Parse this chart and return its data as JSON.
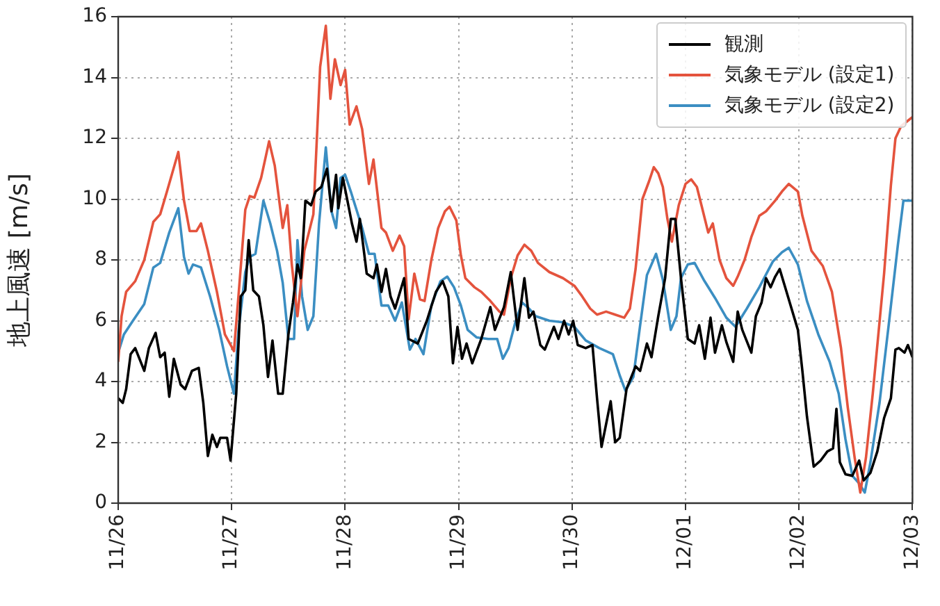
{
  "chart_data": {
    "type": "line",
    "ylabel": "地上風速 [m/s]",
    "xlim": [
      "--11-26",
      "--12-03"
    ],
    "xticks": [
      {
        "value": "--11-26",
        "label": "11/26"
      },
      {
        "value": "--11-27",
        "label": "11/27"
      },
      {
        "value": "--11-28",
        "label": "11/28"
      },
      {
        "value": "--11-29",
        "label": "11/29"
      },
      {
        "value": "--11-30",
        "label": "11/30"
      },
      {
        "value": "--12-01",
        "label": "12/01"
      },
      {
        "value": "--12-02",
        "label": "12/02"
      },
      {
        "value": "--12-03",
        "label": "12/03"
      }
    ],
    "ylim": [
      0,
      16
    ],
    "yticks": [
      0,
      2,
      4,
      6,
      8,
      10,
      12,
      14,
      16
    ],
    "grid": true,
    "legend": "top right",
    "marker": "none",
    "line_style": "solid",
    "series": [
      {
        "name": "観測",
        "color": "#000000",
        "x": [
          "--11-26T00:00",
          "--11-26T00:58",
          "--11-26T01:41",
          "--11-26T02:38",
          "--11-26T03:36",
          "--11-26T05:31",
          "--11-26T06:29",
          "--11-26T07:55",
          "--11-26T08:53",
          "--11-26T09:50",
          "--11-26T10:48",
          "--11-26T11:46",
          "--11-26T13:12",
          "--11-26T14:10",
          "--11-26T15:36",
          "--11-26T17:02",
          "--11-26T18:00",
          "--11-26T18:58",
          "--11-26T19:55",
          "--11-26T20:53",
          "--11-26T21:36",
          "--11-26T23:02",
          "--11-26T23:46",
          "--11-27T00:58",
          "--11-27T01:55",
          "--11-27T02:53",
          "--11-27T03:36",
          "--11-27T04:34",
          "--11-27T05:46",
          "--11-27T06:43",
          "--11-27T07:41",
          "--11-27T08:38",
          "--11-27T09:50",
          "--11-27T10:48",
          "--11-27T12:00",
          "--11-27T12:58",
          "--11-27T13:55",
          "--11-27T14:38",
          "--11-27T15:36",
          "--11-27T16:48",
          "--11-27T17:46",
          "--11-27T18:58",
          "--11-27T20:10",
          "--11-27T21:07",
          "--11-27T22:05",
          "--11-27T22:34",
          "--11-27T23:31",
          "--11-28T00:29",
          "--11-28T01:26",
          "--11-28T02:24",
          "--11-28T03:07",
          "--11-28T04:34",
          "--11-28T06:00",
          "--11-28T06:43",
          "--11-28T07:41",
          "--11-28T08:38",
          "--11-28T09:36",
          "--11-28T10:34",
          "--11-28T12:29",
          "--11-28T13:26",
          "--11-28T15:22",
          "--11-28T17:17",
          "--11-28T19:12",
          "--11-28T20:38",
          "--11-28T21:50",
          "--11-28T22:48",
          "--11-28T23:46",
          "--11-29T00:43",
          "--11-29T01:41",
          "--11-29T02:53",
          "--11-29T04:48",
          "--11-29T06:43",
          "--11-29T07:41",
          "--11-29T09:36",
          "--11-29T11:02",
          "--11-29T12:29",
          "--11-29T13:55",
          "--11-29T14:53",
          "--11-29T15:50",
          "--11-29T17:17",
          "--11-29T18:14",
          "--11-29T20:10",
          "--11-29T21:07",
          "--11-29T22:19",
          "--11-29T23:17",
          "--11-30T00:14",
          "--11-30T01:12",
          "--11-30T02:53",
          "--11-30T04:19",
          "--11-30T05:17",
          "--11-30T06:14",
          "--11-30T08:10",
          "--11-30T09:07",
          "--11-30T10:05",
          "--11-30T11:31",
          "--11-30T13:26",
          "--11-30T14:24",
          "--11-30T15:50",
          "--11-30T16:48",
          "--11-30T18:14",
          "--11-30T19:41",
          "--11-30T20:53",
          "--11-30T21:50",
          "--11-30T23:02",
          "--12-01T00:29",
          "--12-01T01:55",
          "--12-01T02:53",
          "--12-01T04:05",
          "--12-01T05:17",
          "--12-01T06:14",
          "--12-01T07:41",
          "--12-01T08:38",
          "--12-01T10:05",
          "--12-01T11:02",
          "--12-01T12:00",
          "--12-01T13:55",
          "--12-01T14:53",
          "--12-01T16:05",
          "--12-01T17:02",
          "--12-01T18:00",
          "--12-01T18:58",
          "--12-01T19:55",
          "--12-01T21:22",
          "--12-01T23:46",
          "--12-02T00:43",
          "--12-02T01:41",
          "--12-02T03:07",
          "--12-02T04:34",
          "--12-02T06:00",
          "--12-02T07:12",
          "--12-02T07:55",
          "--12-02T08:38",
          "--12-02T09:50",
          "--12-02T11:17",
          "--12-02T12:43",
          "--12-02T13:41",
          "--12-02T15:07",
          "--12-02T16:34",
          "--12-02T18:00",
          "--12-02T19:26",
          "--12-02T20:24",
          "--12-02T21:07",
          "--12-02T22:19",
          "--12-02T23:02",
          "--12-03T00:00"
        ],
        "values": [
          3.45,
          3.3,
          3.75,
          4.9,
          5.1,
          4.35,
          5.1,
          5.6,
          4.8,
          4.95,
          3.5,
          4.75,
          3.9,
          3.75,
          4.35,
          4.45,
          3.3,
          1.55,
          2.25,
          1.85,
          2.15,
          2.15,
          1.4,
          3.6,
          6.8,
          7.0,
          8.65,
          7.0,
          6.8,
          5.85,
          4.15,
          5.35,
          3.6,
          3.6,
          5.55,
          6.6,
          7.85,
          7.4,
          9.95,
          9.8,
          10.25,
          10.4,
          11.0,
          9.6,
          10.8,
          9.7,
          10.7,
          9.95,
          9.2,
          8.6,
          9.35,
          7.55,
          7.4,
          7.85,
          6.95,
          7.7,
          6.8,
          6.4,
          7.4,
          5.4,
          5.25,
          6.0,
          6.95,
          7.3,
          6.8,
          4.6,
          5.8,
          4.75,
          5.25,
          4.6,
          5.4,
          6.45,
          5.7,
          6.45,
          7.6,
          5.7,
          7.4,
          6.1,
          6.3,
          5.2,
          5.05,
          5.8,
          5.4,
          6.0,
          5.55,
          6.0,
          5.2,
          5.1,
          5.2,
          3.45,
          1.85,
          3.35,
          2.0,
          2.15,
          3.75,
          4.5,
          4.35,
          5.25,
          4.8,
          6.15,
          7.4,
          9.35,
          9.35,
          7.4,
          5.4,
          5.25,
          5.85,
          4.75,
          6.1,
          4.95,
          5.85,
          5.3,
          4.65,
          6.3,
          5.7,
          4.95,
          6.15,
          6.6,
          7.4,
          7.1,
          7.45,
          7.7,
          6.95,
          5.7,
          4.35,
          2.85,
          1.2,
          1.4,
          1.7,
          1.8,
          3.1,
          1.35,
          0.95,
          0.9,
          1.4,
          0.75,
          1.0,
          1.7,
          2.8,
          3.45,
          5.05,
          5.1,
          4.95,
          5.2,
          4.8
        ]
      },
      {
        "name": "気象モデル (設定1)",
        "color": "#e4533d",
        "x": [
          "--11-26T00:00",
          "--11-26T00:43",
          "--11-26T01:41",
          "--11-26T03:36",
          "--11-26T05:31",
          "--11-26T07:26",
          "--11-26T08:53",
          "--11-26T10:19",
          "--11-26T12:43",
          "--11-26T13:55",
          "--11-26T15:07",
          "--11-26T16:34",
          "--11-26T17:31",
          "--11-26T18:58",
          "--11-26T20:53",
          "--11-26T22:34",
          "--11-27T00:29",
          "--11-27T01:26",
          "--11-27T02:53",
          "--11-27T03:50",
          "--11-27T04:48",
          "--11-27T06:14",
          "--11-27T07:55",
          "--11-27T09:07",
          "--11-27T10:48",
          "--11-27T11:46",
          "--11-27T12:43",
          "--11-27T13:55",
          "--11-27T15:22",
          "--11-27T17:17",
          "--11-27T18:43",
          "--11-27T19:55",
          "--11-27T20:53",
          "--11-27T21:50",
          "--11-27T23:02",
          "--11-28T00:00",
          "--11-28T00:58",
          "--11-28T02:24",
          "--11-28T03:36",
          "--11-28T05:02",
          "--11-28T06:00",
          "--11-28T07:41",
          "--11-28T08:38",
          "--11-28T10:05",
          "--11-28T11:31",
          "--11-28T12:29",
          "--11-28T13:26",
          "--11-28T14:38",
          "--11-28T15:50",
          "--11-28T16:48",
          "--11-28T18:14",
          "--11-28T19:41",
          "--11-28T21:07",
          "--11-28T22:05",
          "--11-28T23:31",
          "--11-29T00:29",
          "--11-29T01:26",
          "--11-29T03:22",
          "--11-29T04:48",
          "--11-29T06:43",
          "--11-29T08:38",
          "--11-29T09:36",
          "--11-29T11:02",
          "--11-29T12:29",
          "--11-29T13:55",
          "--11-29T15:22",
          "--11-29T16:48",
          "--11-29T19:12",
          "--11-29T22:05",
          "--11-30T00:29",
          "--11-30T01:55",
          "--11-30T03:50",
          "--11-30T05:17",
          "--11-30T07:12",
          "--11-30T09:07",
          "--11-30T11:02",
          "--11-30T12:14",
          "--11-30T13:26",
          "--11-30T14:53",
          "--11-30T16:19",
          "--11-30T17:17",
          "--11-30T18:14",
          "--11-30T19:12",
          "--11-30T20:10",
          "--11-30T21:07",
          "--11-30T22:34",
          "--12-01T00:00",
          "--12-01T01:12",
          "--12-01T02:24",
          "--12-01T03:22",
          "--12-01T04:48",
          "--12-01T05:46",
          "--12-01T07:12",
          "--12-01T08:38",
          "--12-01T10:05",
          "--12-01T11:02",
          "--12-01T12:29",
          "--12-01T13:55",
          "--12-01T15:36",
          "--12-01T17:02",
          "--12-01T18:58",
          "--12-01T20:24",
          "--12-01T21:50",
          "--12-01T23:46",
          "--12-02T00:43",
          "--12-02T02:38",
          "--12-02T05:02",
          "--12-02T06:58",
          "--12-02T08:53",
          "--12-02T10:19",
          "--12-02T11:46",
          "--12-02T12:58",
          "--12-02T14:10",
          "--12-02T15:36",
          "--12-02T18:00",
          "--12-02T19:26",
          "--12-02T20:24",
          "--12-02T21:36",
          "--12-03T00:00"
        ],
        "values": [
          4.65,
          6.15,
          6.95,
          7.3,
          8.0,
          9.25,
          9.5,
          10.25,
          11.55,
          9.95,
          8.95,
          8.95,
          9.2,
          8.3,
          6.95,
          5.55,
          5.0,
          6.8,
          9.65,
          10.1,
          10.05,
          10.7,
          11.9,
          11.1,
          9.05,
          9.8,
          7.85,
          6.15,
          8.3,
          9.5,
          14.35,
          15.7,
          13.3,
          14.6,
          13.75,
          14.25,
          12.45,
          13.05,
          12.3,
          10.5,
          11.3,
          9.05,
          8.9,
          8.3,
          8.8,
          8.45,
          6.05,
          7.55,
          6.7,
          6.65,
          8.0,
          9.05,
          9.6,
          9.75,
          9.3,
          8.15,
          7.4,
          7.1,
          6.95,
          6.65,
          6.3,
          6.2,
          7.4,
          8.15,
          8.5,
          8.3,
          7.9,
          7.6,
          7.4,
          7.15,
          6.85,
          6.4,
          6.2,
          6.3,
          6.2,
          6.1,
          6.4,
          7.7,
          10.0,
          10.6,
          11.05,
          10.85,
          10.4,
          9.35,
          8.6,
          9.8,
          10.5,
          10.65,
          10.4,
          9.8,
          8.9,
          9.2,
          8.0,
          7.4,
          7.15,
          7.45,
          8.0,
          8.75,
          9.45,
          9.6,
          9.95,
          10.25,
          10.5,
          10.25,
          9.45,
          8.3,
          7.8,
          6.95,
          5.1,
          3.15,
          1.5,
          0.35,
          1.5,
          3.6,
          7.55,
          10.45,
          12.0,
          12.4,
          12.7
        ]
      },
      {
        "name": "気象モデル (設定2)",
        "color": "#3b8ec2",
        "x": [
          "--11-26T00:00",
          "--11-26T01:12",
          "--11-26T03:07",
          "--11-26T05:31",
          "--11-26T07:26",
          "--11-26T08:53",
          "--11-26T10:48",
          "--11-26T12:43",
          "--11-26T13:55",
          "--11-26T14:53",
          "--11-26T15:50",
          "--11-26T17:31",
          "--11-26T19:26",
          "--11-26T21:22",
          "--11-26T23:02",
          "--11-27T00:29",
          "--11-27T01:26",
          "--11-27T02:53",
          "--11-27T03:50",
          "--11-27T05:02",
          "--11-27T06:43",
          "--11-27T08:10",
          "--11-27T09:36",
          "--11-27T10:48",
          "--11-27T12:00",
          "--11-27T13:12",
          "--11-27T13:55",
          "--11-27T14:53",
          "--11-27T16:05",
          "--11-27T17:17",
          "--11-27T18:29",
          "--11-27T19:55",
          "--11-27T21:07",
          "--11-27T22:05",
          "--11-27T23:02",
          "--11-28T00:00",
          "--11-28T01:12",
          "--11-28T02:24",
          "--11-28T03:36",
          "--11-28T05:02",
          "--11-28T06:14",
          "--11-28T07:41",
          "--11-28T09:07",
          "--11-28T10:34",
          "--11-28T12:00",
          "--11-28T13:41",
          "--11-28T14:53",
          "--11-28T16:34",
          "--11-28T18:14",
          "--11-28T20:10",
          "--11-28T21:36",
          "--11-28T23:02",
          "--11-29T00:29",
          "--11-29T01:55",
          "--11-29T03:50",
          "--11-29T06:14",
          "--11-29T08:10",
          "--11-29T09:22",
          "--11-29T10:34",
          "--11-29T12:00",
          "--11-29T13:26",
          "--11-29T14:53",
          "--11-29T16:19",
          "--11-29T19:12",
          "--11-29T22:05",
          "--11-30T00:29",
          "--11-30T02:53",
          "--11-30T05:46",
          "--11-30T08:38",
          "--11-30T10:05",
          "--11-30T11:17",
          "--11-30T12:58",
          "--11-30T14:24",
          "--11-30T15:50",
          "--11-30T17:46",
          "--11-30T19:12",
          "--11-30T20:53",
          "--11-30T22:05",
          "--11-30T23:02",
          "--12-01T00:29",
          "--12-01T01:55",
          "--12-01T03:50",
          "--12-01T06:14",
          "--12-01T08:38",
          "--12-01T10:34",
          "--12-01T12:58",
          "--12-01T15:36",
          "--12-01T18:29",
          "--12-01T20:24",
          "--12-01T21:50",
          "--12-01T23:46",
          "--12-02T01:41",
          "--12-02T04:05",
          "--12-02T06:29",
          "--12-02T08:24",
          "--12-02T09:50",
          "--12-02T11:17",
          "--12-02T12:43",
          "--12-02T13:55",
          "--12-02T15:07",
          "--12-02T17:02",
          "--12-02T18:58",
          "--12-02T20:53",
          "--12-02T22:05",
          "--12-03T00:00"
        ],
        "values": [
          4.95,
          5.55,
          6.0,
          6.55,
          7.75,
          7.9,
          8.9,
          9.7,
          8.1,
          7.55,
          7.85,
          7.75,
          6.8,
          5.7,
          4.5,
          3.6,
          5.65,
          7.6,
          8.1,
          8.2,
          9.95,
          9.2,
          8.3,
          7.25,
          5.4,
          5.4,
          8.65,
          6.8,
          5.7,
          6.15,
          9.2,
          11.7,
          9.6,
          9.05,
          10.7,
          10.8,
          10.25,
          9.65,
          9.05,
          8.2,
          8.2,
          6.5,
          6.5,
          6.0,
          6.6,
          5.05,
          5.4,
          4.9,
          6.5,
          7.3,
          7.45,
          7.1,
          6.5,
          5.7,
          5.45,
          5.4,
          5.4,
          4.75,
          5.1,
          5.95,
          6.6,
          6.4,
          6.15,
          6.0,
          5.95,
          5.8,
          5.35,
          5.1,
          4.9,
          4.2,
          3.7,
          4.15,
          5.85,
          7.5,
          8.2,
          7.35,
          5.7,
          6.15,
          7.4,
          7.85,
          7.9,
          7.35,
          6.75,
          6.1,
          5.8,
          6.4,
          7.1,
          7.95,
          8.25,
          8.4,
          7.85,
          6.65,
          5.55,
          4.65,
          3.6,
          2.1,
          0.9,
          0.65,
          0.35,
          1.35,
          3.3,
          5.85,
          8.45,
          9.95,
          9.95
        ]
      }
    ]
  }
}
